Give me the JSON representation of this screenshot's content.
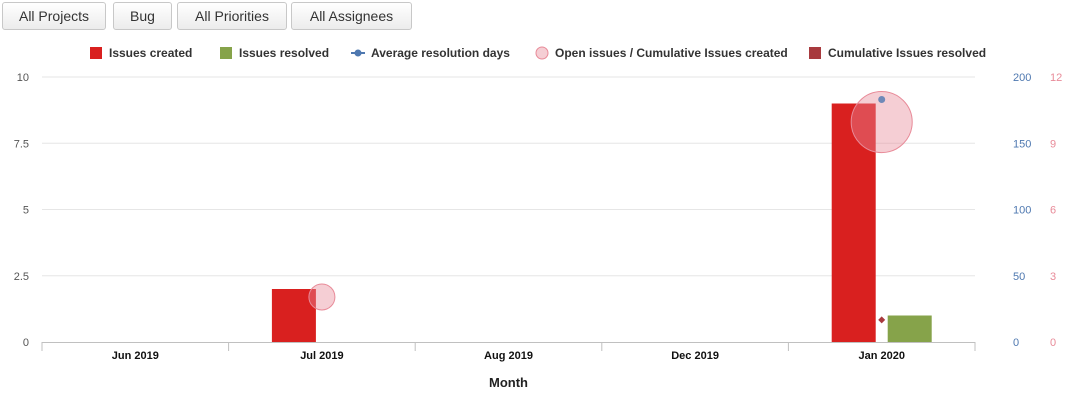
{
  "filters": [
    {
      "label": "All Projects"
    },
    {
      "label": "Bug"
    },
    {
      "label": "All Priorities"
    },
    {
      "label": "All Assignees"
    }
  ],
  "chart_data": {
    "type": "bar",
    "categories": [
      "Jun 2019",
      "Jul 2019",
      "Aug 2019",
      "Dec 2019",
      "Jan 2020"
    ],
    "xlabel": "Month",
    "series": [
      {
        "name": "Issues created",
        "type": "bar",
        "axis": "left",
        "color": "#d9201f",
        "values": [
          0,
          2,
          0,
          0,
          9
        ]
      },
      {
        "name": "Issues resolved",
        "type": "bar",
        "axis": "left",
        "color": "#86a34a",
        "values": [
          0,
          0,
          0,
          0,
          1
        ]
      },
      {
        "name": "Average resolution days",
        "type": "line",
        "axis": "right1",
        "color": "#4e78b0",
        "values": [
          null,
          null,
          null,
          null,
          183
        ]
      },
      {
        "name": "Open issues / Cumulative Issues created",
        "type": "bubble",
        "axis": "left",
        "color": "#e88a98",
        "values": [
          null,
          1.7,
          null,
          null,
          8.3
        ],
        "bubble_size": [
          null,
          2,
          null,
          null,
          11
        ]
      },
      {
        "name": "Cumulative Issues resolved",
        "type": "scatter",
        "axis": "right2",
        "color": "#a83a3e",
        "values": [
          null,
          null,
          null,
          null,
          1
        ]
      }
    ],
    "axes": {
      "left": {
        "ticks": [
          "0",
          "2.5",
          "5",
          "7.5",
          "10"
        ],
        "range": [
          0,
          10
        ],
        "color": "#555555"
      },
      "right1": {
        "ticks": [
          "0",
          "50",
          "100",
          "150",
          "200"
        ],
        "range": [
          0,
          200
        ],
        "color": "#4e78b0"
      },
      "right2": {
        "ticks": [
          "0",
          "3",
          "6",
          "9",
          "12"
        ],
        "range": [
          0,
          12
        ],
        "color": "#e88a98"
      }
    },
    "grid": true,
    "legend_position": "top"
  }
}
